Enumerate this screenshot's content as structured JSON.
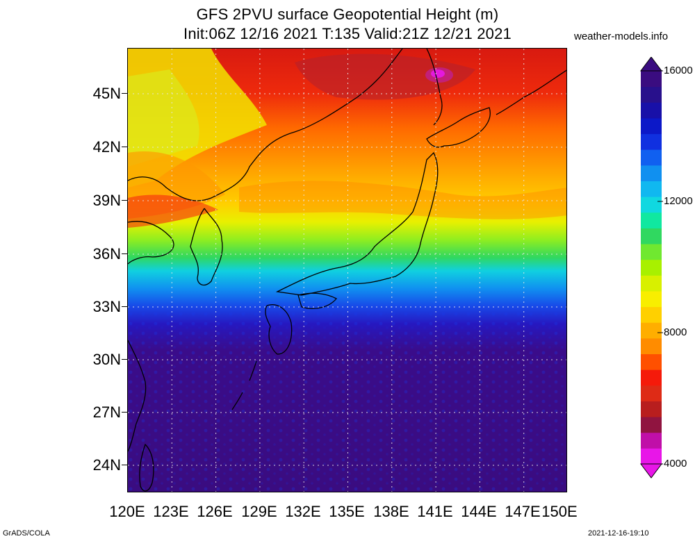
{
  "header": {
    "title_line_1": "GFS 2PVU surface Geopotential Height (m)",
    "title_line_2": "Init:06Z 12/16 2021 T:135 Valid:21Z 12/21 2021",
    "site": "weather-models.info"
  },
  "map": {
    "lat_labels": [
      "45N",
      "42N",
      "39N",
      "36N",
      "33N",
      "30N",
      "27N",
      "24N"
    ],
    "lon_labels": [
      "120E",
      "123E",
      "126E",
      "129E",
      "132E",
      "135E",
      "138E",
      "141E",
      "144E",
      "147E",
      "150E"
    ],
    "grid": "dotted"
  },
  "colorbar": {
    "labels": [
      "16000",
      "12000",
      "8000",
      "4000"
    ],
    "colors": [
      "#e816e8",
      "#c00fa8",
      "#901440",
      "#b81e1e",
      "#de2b16",
      "#f51a0a",
      "#ff5000",
      "#ff8c00",
      "#ffae00",
      "#ffd000",
      "#f8ee00",
      "#d8f000",
      "#a8f000",
      "#70e830",
      "#30d860",
      "#10e8a0",
      "#10d8e0",
      "#10b8f0",
      "#1090f0",
      "#1060f0",
      "#1030e0",
      "#0c18c8",
      "#1810a8",
      "#28108c",
      "#3a0c80"
    ],
    "accent_dark": "#3a0c80"
  },
  "footer": {
    "left": "GrADS/COLA",
    "right": "2021-12-16-19:10"
  }
}
